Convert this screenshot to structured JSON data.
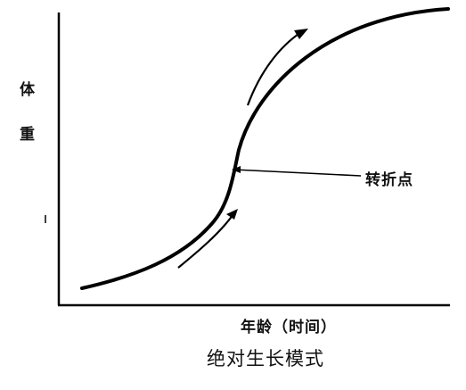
{
  "chart_data": {
    "type": "line",
    "title": "",
    "caption": "绝对生长模式",
    "xlabel": "年龄（时间）",
    "ylabel": [
      "体",
      "重"
    ],
    "ylabel_chars": [
      "体",
      "重"
    ],
    "grid": false,
    "legend": "none",
    "series_style": "sigmoid growth curve",
    "annotations": [
      {
        "text": "转折点",
        "marks": "inflection point of curve"
      }
    ],
    "arrows": [
      "along rising curve below inflection point",
      "along curve above inflection point"
    ]
  }
}
